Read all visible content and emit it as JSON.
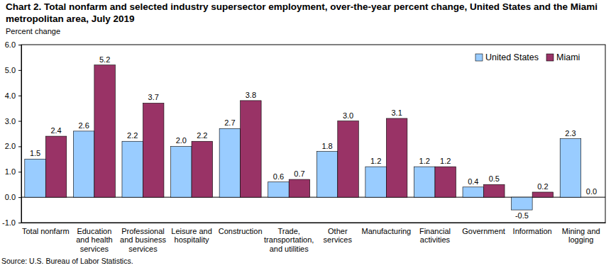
{
  "chart_data": {
    "type": "bar",
    "title": "Chart 2. Total nonfarm and selected industry supersector employment, over-the-year percent change, United States and the Miami\nmetropolitan area, July 2019",
    "y_label": "Percent change",
    "source": "Source: U.S. Bureau of Labor Statistics.",
    "categories": [
      "Total nonfarm",
      "Education\nand health\nservices",
      "Professional\nand business\nservices",
      "Leisure and\nhospitality",
      "Construction",
      "Trade,\ntransportation,\nand utilities",
      "Other\nservices",
      "Manufacturing",
      "Financial\nactivities",
      "Government",
      "Information",
      "Mining and\nlogging"
    ],
    "series": [
      {
        "name": "United States",
        "color": "#99ccff",
        "values": [
          1.5,
          2.6,
          2.2,
          2.0,
          2.7,
          0.6,
          1.8,
          1.2,
          1.2,
          0.4,
          -0.5,
          2.3
        ],
        "value_labels": [
          "1.5",
          "2.6",
          "2.2",
          "2.0",
          "2.7",
          "0.6",
          "1.8",
          "1.2",
          "1.2",
          "0.4",
          "-0.5",
          "2.3"
        ]
      },
      {
        "name": "Miami",
        "color": "#993366",
        "values": [
          2.4,
          5.2,
          3.7,
          2.2,
          3.8,
          0.7,
          3.0,
          3.1,
          1.2,
          0.5,
          0.2,
          0.0
        ],
        "value_labels": [
          "2.4",
          "5.2",
          "3.7",
          "2.2",
          "3.8",
          "0.7",
          "3.0",
          "3.1",
          "1.2",
          "0.5",
          "0.2",
          "0.0"
        ]
      }
    ],
    "ylim": [
      -1,
      6
    ],
    "yticks": [
      {
        "value": -1,
        "label": "-1.0"
      },
      {
        "value": 0,
        "label": "0.0"
      },
      {
        "value": 1,
        "label": "1.0"
      },
      {
        "value": 2,
        "label": "2.0"
      },
      {
        "value": 3,
        "label": "3.0"
      },
      {
        "value": 4,
        "label": "4.0"
      },
      {
        "value": 5,
        "label": "5.0"
      },
      {
        "value": 6,
        "label": "6.0"
      }
    ],
    "grid": false,
    "legend": "upper right",
    "data_labels": true
  }
}
